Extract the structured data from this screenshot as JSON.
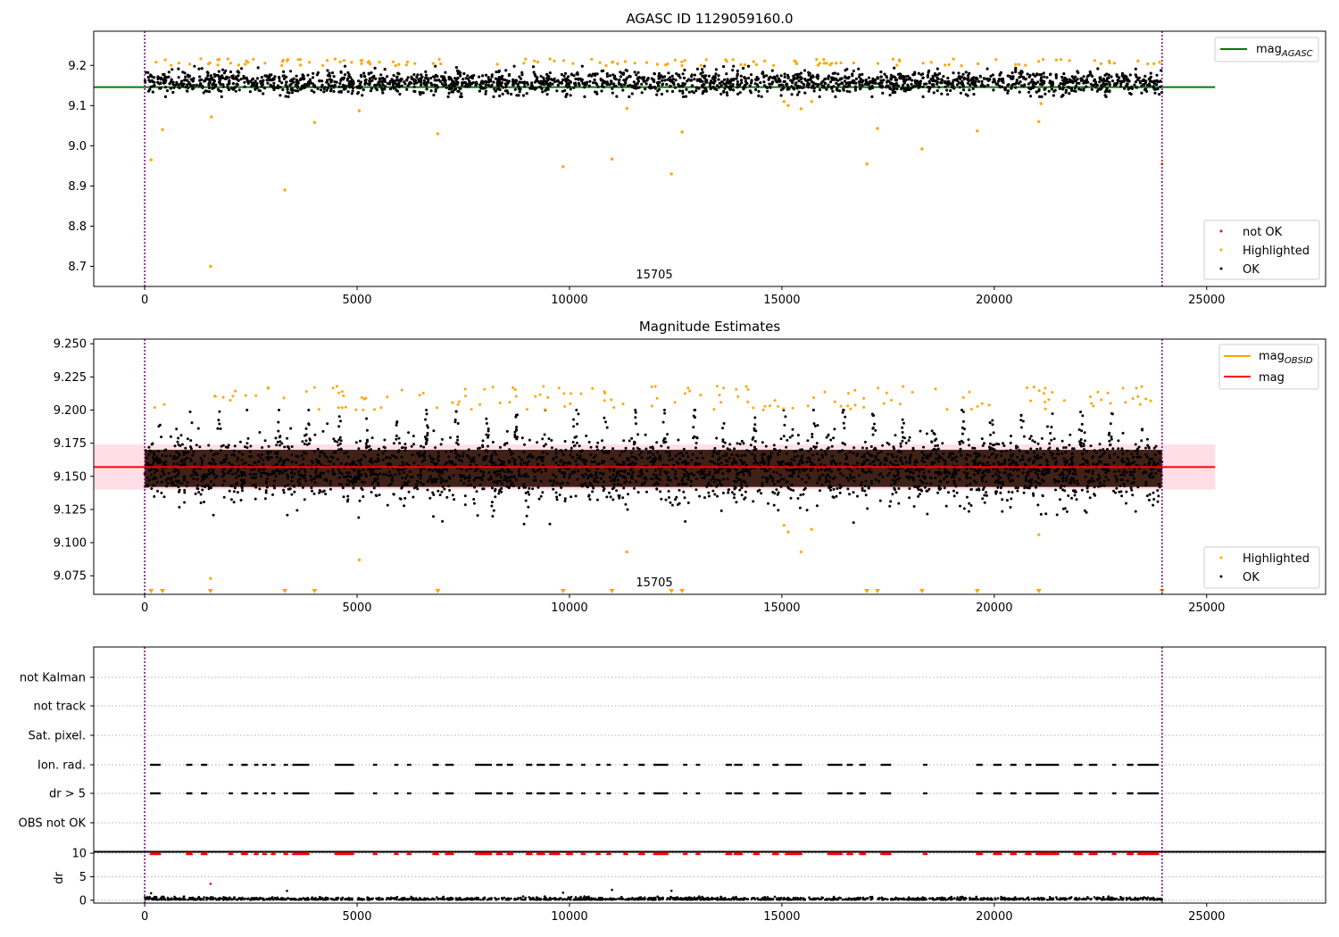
{
  "figure": {
    "title": "AGASC ID 1129059160.0",
    "panel2_title": "Magnitude Estimates",
    "obsid_label": "15705"
  },
  "colors": {
    "ok": "#000000",
    "highlighted": "#ffa500",
    "not_ok": "#ff0000",
    "mag_agasc": "#008000",
    "mag": "#ff0000",
    "mag_obsid": "#ffa500",
    "band": "#ffc0cb",
    "obsid_boundary": "#800080",
    "brown_band": "#2a0c00"
  },
  "chart_data": [
    {
      "type": "scatter",
      "title": "AGASC ID 1129059160.0",
      "xlim": [
        -1200,
        27800
      ],
      "ylim": [
        8.65,
        9.285
      ],
      "xticks": [
        0,
        5000,
        10000,
        15000,
        20000,
        25000
      ],
      "yticks": [
        8.7,
        8.8,
        8.9,
        9.0,
        9.1,
        9.2
      ],
      "ytick_labels": [
        "8.7",
        "8.8",
        "8.9",
        "9.0",
        "9.1",
        "9.2"
      ],
      "grid": false,
      "obsid_boundaries": [
        0,
        23950
      ],
      "obsid_label": "15705",
      "lines": [
        {
          "name": "mag_AGASC",
          "legend_main": "mag",
          "legend_sub": "AGASC",
          "y": 9.146,
          "x_range": [
            -1200,
            25200
          ]
        }
      ],
      "series": [
        {
          "name": "not OK",
          "points": []
        },
        {
          "name": "Highlighted",
          "points": [
            [
              150,
              8.965
            ],
            [
              420,
              9.04
            ],
            [
              1550,
              8.7
            ],
            [
              1570,
              9.072
            ],
            [
              3300,
              8.89
            ],
            [
              4000,
              9.058
            ],
            [
              5050,
              9.087
            ],
            [
              6900,
              9.03
            ],
            [
              9850,
              8.948
            ],
            [
              11000,
              8.967
            ],
            [
              11350,
              9.093
            ],
            [
              12400,
              8.93
            ],
            [
              12650,
              9.034
            ],
            [
              15050,
              9.11
            ],
            [
              15150,
              9.1
            ],
            [
              15450,
              9.092
            ],
            [
              15700,
              9.11
            ],
            [
              17000,
              8.955
            ],
            [
              17250,
              9.043
            ],
            [
              18300,
              8.992
            ],
            [
              19600,
              9.037
            ],
            [
              21050,
              9.06
            ],
            [
              21100,
              9.105
            ],
            [
              23950,
              8.955
            ]
          ]
        },
        {
          "name": "OK",
          "points": []
        }
      ],
      "legend": [
        "not OK",
        "Highlighted",
        "OK"
      ]
    },
    {
      "type": "scatter",
      "title": "Magnitude Estimates",
      "xlim": [
        -1200,
        27800
      ],
      "ylim": [
        9.061,
        9.2535
      ],
      "xticks": [
        0,
        5000,
        10000,
        15000,
        20000,
        25000
      ],
      "yticks": [
        9.075,
        9.1,
        9.125,
        9.15,
        9.175,
        9.2,
        9.225,
        9.25
      ],
      "ytick_labels": [
        "9.075",
        "9.100",
        "9.125",
        "9.150",
        "9.175",
        "9.200",
        "9.225",
        "9.250"
      ],
      "grid": false,
      "obsid_boundaries": [
        0,
        23950
      ],
      "obsid_label": "15705",
      "mag": 9.157,
      "mag_band": [
        9.14,
        9.174
      ],
      "lines": [
        {
          "name": "mag_OBSID",
          "legend_main": "mag",
          "legend_sub": "OBSID",
          "y": 9.157,
          "x_range": [
            -1200,
            25200
          ]
        },
        {
          "name": "mag",
          "legend_main": "mag",
          "legend_sub": "",
          "y": 9.157,
          "x_range": [
            -1200,
            25200
          ]
        }
      ],
      "series": [
        {
          "name": "Highlighted",
          "points": [
            [
              1550,
              9.073
            ],
            [
              5050,
              9.087
            ],
            [
              11350,
              9.093
            ],
            [
              15050,
              9.113
            ],
            [
              15150,
              9.108
            ],
            [
              15450,
              9.093
            ],
            [
              15700,
              9.11
            ],
            [
              21050,
              9.106
            ]
          ]
        },
        {
          "name": "OK",
          "points": []
        }
      ],
      "below_axis_markers_x": [
        150,
        420,
        1550,
        3300,
        4000,
        6900,
        9850,
        11000,
        12400,
        12650,
        17000,
        17250,
        18300,
        19600,
        21050,
        23950
      ],
      "legend": [
        "Highlighted",
        "OK"
      ]
    },
    {
      "type": "scatter",
      "title": "",
      "xlim": [
        -1200,
        27800
      ],
      "xticks": [
        0,
        5000,
        10000,
        15000,
        20000,
        25000
      ],
      "categories": [
        "not Kalman",
        "not track",
        "Sat. pixel.",
        "Ion. rad.",
        "dr > 5",
        "OBS not OK"
      ],
      "grid": "horizontal dotted",
      "obsid_boundaries": [
        0,
        23950
      ],
      "flag_x_clusters": [
        [
          150,
          350
        ],
        [
          1000,
          1100
        ],
        [
          1350,
          1450
        ],
        [
          2000,
          2050
        ],
        [
          2300,
          2400
        ],
        [
          2600,
          2650
        ],
        [
          2800,
          2850
        ],
        [
          3000,
          3050
        ],
        [
          3300,
          3350
        ],
        [
          3500,
          3850
        ],
        [
          4500,
          4900
        ],
        [
          5400,
          5450
        ],
        [
          5900,
          5950
        ],
        [
          6200,
          6250
        ],
        [
          6800,
          6900
        ],
        [
          7100,
          7250
        ],
        [
          7800,
          8150
        ],
        [
          8300,
          8400
        ],
        [
          8550,
          8650
        ],
        [
          9000,
          9100
        ],
        [
          9250,
          9400
        ],
        [
          9550,
          9750
        ],
        [
          9950,
          10050
        ],
        [
          10300,
          10350
        ],
        [
          10650,
          10700
        ],
        [
          10900,
          10950
        ],
        [
          11300,
          11350
        ],
        [
          11650,
          11750
        ],
        [
          12000,
          12300
        ],
        [
          12700,
          12750
        ],
        [
          13000,
          13050
        ],
        [
          13700,
          13800
        ],
        [
          13900,
          14050
        ],
        [
          14350,
          14450
        ],
        [
          14800,
          14900
        ],
        [
          15100,
          15450
        ],
        [
          16100,
          16400
        ],
        [
          16550,
          16650
        ],
        [
          16850,
          16950
        ],
        [
          17350,
          17550
        ],
        [
          18350,
          18400
        ],
        [
          19600,
          19700
        ],
        [
          20000,
          20150
        ],
        [
          20400,
          20500
        ],
        [
          20750,
          20850
        ],
        [
          21000,
          21500
        ],
        [
          21900,
          22050
        ],
        [
          22250,
          22400
        ],
        [
          22800,
          22850
        ],
        [
          23150,
          23250
        ],
        [
          23400,
          23850
        ]
      ]
    },
    {
      "type": "scatter",
      "title": "",
      "ylabel": "dr",
      "xlim": [
        -1200,
        27800
      ],
      "ylim": [
        -0.6,
        10.4
      ],
      "xticks": [
        0,
        5000,
        10000,
        15000,
        20000,
        25000
      ],
      "yticks": [
        0,
        5,
        10
      ],
      "ytick_labels": [
        "0",
        "5",
        "10"
      ],
      "grid": "horizontal dotted",
      "obsid_boundaries": [
        0,
        23950
      ],
      "outliers": [
        {
          "x": 1550,
          "y": 3.5,
          "color": "red"
        },
        {
          "x": 3350,
          "y": 2.0,
          "color": "black"
        },
        {
          "x": 11000,
          "y": 2.2,
          "color": "black"
        },
        {
          "x": 12400,
          "y": 2.0,
          "color": "black"
        },
        {
          "x": 9850,
          "y": 1.6,
          "color": "black"
        },
        {
          "x": 150,
          "y": 1.5,
          "color": "black"
        }
      ],
      "dr_clipped_value": 10,
      "dr_typical_range": [
        0,
        0.8
      ]
    }
  ]
}
